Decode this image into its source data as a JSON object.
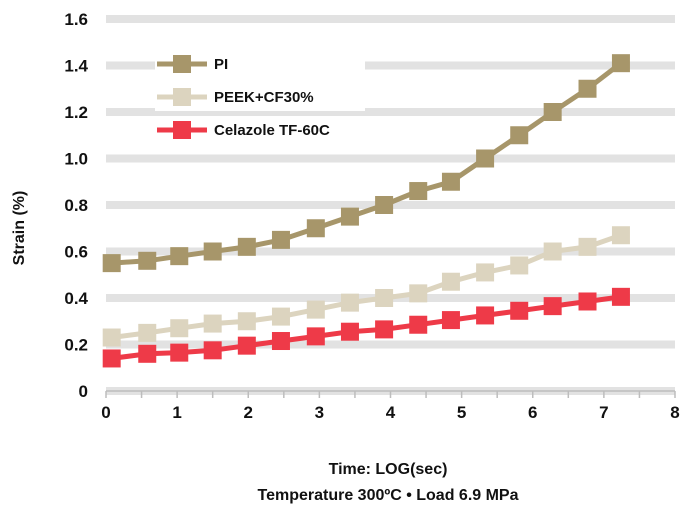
{
  "chart_data": {
    "type": "line",
    "title": "",
    "xlabel": "Time: LOG(sec)",
    "xlabel_line2": "Temperature 300ºC • Load 6.9 MPa",
    "ylabel": "Strain (%)",
    "xlim": [
      0,
      8
    ],
    "ylim": [
      0,
      1.6
    ],
    "x_ticks": [
      "0",
      "1",
      "2",
      "3",
      "4",
      "5",
      "6",
      "7",
      "8"
    ],
    "y_ticks": [
      "0",
      "0.2",
      "0.4",
      "0.6",
      "0.8",
      "1.0",
      "1.2",
      "1.4",
      "1.6"
    ],
    "grid": "horizontal",
    "legend_position": "top-left",
    "x": [
      0.08,
      0.58,
      1.03,
      1.5,
      1.98,
      2.46,
      2.95,
      3.43,
      3.91,
      4.39,
      4.85,
      5.33,
      5.81,
      6.28,
      6.77,
      7.24
    ],
    "series": [
      {
        "name": "PI",
        "color": "#a7966a",
        "values": [
          0.55,
          0.56,
          0.58,
          0.6,
          0.62,
          0.65,
          0.7,
          0.75,
          0.8,
          0.86,
          0.9,
          1.0,
          1.1,
          1.2,
          1.3,
          1.41
        ]
      },
      {
        "name": "PEEK+CF30%",
        "color": "#dcd4bf",
        "values": [
          0.23,
          0.25,
          0.27,
          0.29,
          0.3,
          0.32,
          0.35,
          0.38,
          0.4,
          0.42,
          0.47,
          0.51,
          0.54,
          0.6,
          0.62,
          0.67
        ]
      },
      {
        "name": "Celazole TF-60C",
        "color": "#ee3a48",
        "values": [
          0.14,
          0.16,
          0.165,
          0.175,
          0.195,
          0.215,
          0.235,
          0.255,
          0.265,
          0.285,
          0.305,
          0.325,
          0.345,
          0.365,
          0.385,
          0.405
        ]
      }
    ]
  }
}
